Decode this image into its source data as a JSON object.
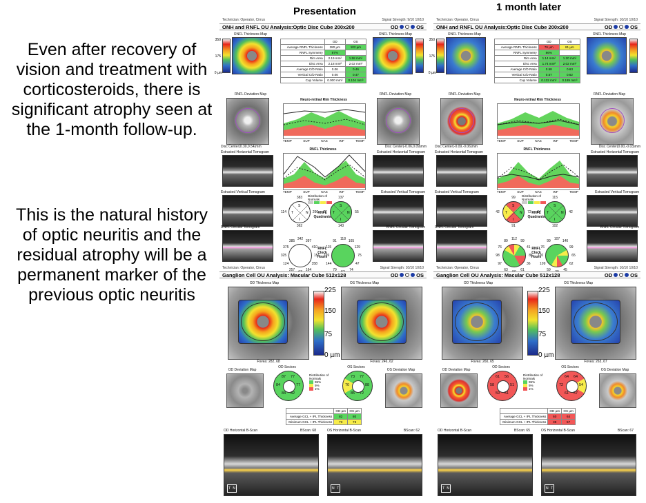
{
  "slide": {
    "caption_1": "Even after recovery of vision and treatment with corticosteroids, there is significant atrophy seen at the 1-month follow-up.",
    "caption_2": "This is the natural history of optic neuritis and the residual atrophy will be a permanent marker of the previous optic neuritis",
    "col_left_title": "Presentation",
    "col_right_title": "1 month later"
  },
  "reports": [
    {
      "technician": "Technician: Operator, Cirrus",
      "signal": "Signal Strength: 9/10   10/10",
      "onh_title": "ONH and RNFL OU Analysis:Optic Disc Cube 200x200",
      "od": "OD",
      "os": "OS",
      "rnfl_map": "RNFL Thickness Map",
      "scale_top": "350",
      "scale_mid": "175",
      "scale_bot": "0 µm",
      "table": {
        "head": [
          "",
          "OD",
          "OS"
        ],
        "rows": [
          [
            "Average RNFL Thickness",
            "280 µm",
            "102 µm"
          ],
          [
            "RNFL Symmetry",
            "87%",
            ""
          ],
          [
            "Rim Area",
            "2.19 mm²",
            "1.58 mm²"
          ],
          [
            "Disc Area",
            "2.18 mm²",
            "2.02 mm²"
          ],
          [
            "Average C/D Ratio",
            "0.06",
            "0.46"
          ],
          [
            "Vertical C/D Ratio",
            "0.06",
            "0.47"
          ],
          [
            "Cup Volume",
            "0.000 mm³",
            "0.104 mm³"
          ]
        ],
        "colors": [
          [
            "",
            "w",
            "g"
          ],
          [
            "",
            "g",
            ""
          ],
          [
            "",
            "w",
            "g"
          ],
          [
            "",
            "w",
            "w"
          ],
          [
            "",
            "w",
            "g"
          ],
          [
            "",
            "w",
            "g"
          ],
          [
            "",
            "w",
            "g"
          ]
        ]
      },
      "rim_title": "Neuro-retinal Rim Thickness",
      "rnfl_title": "RNFL Thickness",
      "deviation": "RNFL Deviation Map",
      "disc_center_od": "Disc Center(0.30,0.54)mm",
      "disc_center_os": "Disc Center(-0.06,0.09)mm",
      "horiz_tomo": "Extracted Horizontal Tomogram",
      "vert_tomo": "Extracted Vertical Tomogram",
      "circ_tomo": "RNFL Circular Tomogram",
      "axis_labels": [
        "TEMP",
        "SUP",
        "NAS",
        "INF",
        "TEMP"
      ],
      "quadrants_label": "RNFL Quadrants",
      "clock_label": "RNFL Clock Hours",
      "quad_od": [
        "383",
        "114",
        "260",
        "362"
      ],
      "quad_os": [
        "137",
        "70",
        "55",
        "143"
      ],
      "clock_od": [
        "342",
        "397",
        "410",
        "151",
        "358",
        "164",
        "67",
        "257",
        "124",
        "325",
        "375",
        "385"
      ],
      "clock_os": [
        "118",
        "165",
        "129",
        "75",
        "47",
        "74",
        "52",
        "79",
        "144",
        "169",
        "115",
        "91"
      ],
      "gcl_tech": "Technician: Operator, Cirrus",
      "gcl_signal": "Signal Strength: 10/10   10/10",
      "gcl_title": "Ganglion Cell OU Analysis: Macular Cube 512x128",
      "od_thick": "OD Thickness Map",
      "os_thick": "OS Thickness Map",
      "big_scale": [
        "225",
        "150",
        "75",
        "0 µm"
      ],
      "fovea_od": "Fovea: 282, 68",
      "fovea_os": "Fovea: 246, 62",
      "od_dev": "OD Deviation Map",
      "od_sec": "OD Sectors",
      "os_sec": "OS Sectors",
      "os_dev": "OS Deviation Map",
      "sectors_od": [
        "77",
        "77",
        "82",
        "84",
        "84",
        "87"
      ],
      "sectors_os": [
        "77",
        "88",
        "72",
        "85",
        "70",
        "73"
      ],
      "dist_labels": [
        "Distribution of Normals",
        "95%",
        "5%",
        "1%"
      ],
      "gcl_table": {
        "head": [
          "",
          "OD µm",
          "OS µm"
        ],
        "rows": [
          [
            "Average GCL + IPL Thickness",
            "82",
            "80"
          ],
          [
            "Minimum GCL + IPL Thickness",
            "73",
            "73"
          ]
        ],
        "colors": [
          [
            "",
            "g",
            "g"
          ],
          [
            "",
            "y",
            "y"
          ]
        ]
      },
      "od_bscan": "OD Horizontal B-Scan",
      "os_bscan": "OS Horizontal B-Scan",
      "bscan_od_num": "BScan: 68",
      "bscan_os_num": "BScan: 62"
    },
    {
      "technician": "Technician: Operator, Cirrus",
      "signal": "Signal Strength: 10/10   10/10",
      "onh_title": "ONH and RNFL OU Analysis:Optic Disc Cube 200x200",
      "od": "OD",
      "os": "OS",
      "rnfl_map": "RNFL Thickness Map",
      "scale_top": "350",
      "scale_mid": "175",
      "scale_bot": "0 µm",
      "table": {
        "head": [
          "",
          "OD",
          "OS"
        ],
        "rows": [
          [
            "Average RNFL Thickness",
            "76 µm",
            "81 µm"
          ],
          [
            "RNFL Symmetry",
            "86%",
            ""
          ],
          [
            "Rim Area",
            "1.14 mm²",
            "1.20 mm²"
          ],
          [
            "Disc Area",
            "1.74 mm²",
            "2.02 mm²"
          ],
          [
            "Average C/D Ratio",
            "0.58",
            "0.63"
          ],
          [
            "Vertical C/D Ratio",
            "0.57",
            "0.62"
          ],
          [
            "Cup Volume",
            "0.132 mm³",
            "0.189 mm³"
          ]
        ],
        "colors": [
          [
            "",
            "r",
            "y"
          ],
          [
            "",
            "g",
            ""
          ],
          [
            "",
            "g",
            "g"
          ],
          [
            "",
            "g",
            "g"
          ],
          [
            "",
            "g",
            "g"
          ],
          [
            "",
            "g",
            "g"
          ],
          [
            "",
            "g",
            "g"
          ]
        ]
      },
      "rim_title": "Neuro-retinal Rim Thickness",
      "rnfl_title": "RNFL Thickness",
      "deviation": "RNFL Deviation Map",
      "disc_center_od": "Disc Center(-0.09,-0.06)mm",
      "disc_center_os": "Disc Center(0.00,-0.03)mm",
      "horiz_tomo": "Extracted Horizontal Tomogram",
      "vert_tomo": "Extracted Vertical Tomogram",
      "circ_tomo": "RNFL Circular Tomogram",
      "axis_labels": [
        "TEMP",
        "SUP",
        "NAS",
        "INF",
        "TEMP"
      ],
      "quadrants_label": "RNFL Quadrants",
      "clock_label": "RNFL Clock Hours",
      "quad_od": [
        "99",
        "42",
        "72",
        "91"
      ],
      "quad_os": [
        "115",
        "64",
        "42",
        "102"
      ],
      "clock_od": [
        "112",
        "99",
        "41",
        "85",
        "36",
        "61",
        "50",
        "63",
        "97",
        "98",
        "76",
        "89"
      ],
      "clock_os": [
        "107",
        "140",
        "99",
        "65",
        "62",
        "45",
        "39",
        "59",
        "109",
        "120",
        "76",
        "99"
      ],
      "gcl_tech": "Technician: Operator, Cirrus",
      "gcl_signal": "Signal Strength: 10/10   10/10",
      "gcl_title": "Ganglion Cell OU Analysis: Macular Cube 512x128",
      "od_thick": "OD Thickness Map",
      "os_thick": "OS Thickness Map",
      "big_scale": [
        "225",
        "150",
        "75",
        "0 µm"
      ],
      "fovea_od": "Fovea: 260, 65",
      "fovea_os": "Fovea: 263, 67",
      "od_dev": "OD Deviation Map",
      "od_sec": "OD Sectors",
      "os_sec": "OS Sectors",
      "os_dev": "OS Deviation Map",
      "sectors_od": [
        "56",
        "51",
        "51",
        "59",
        "58",
        "61"
      ],
      "sectors_os": [
        "64",
        "54",
        "57",
        "61",
        "72",
        "64"
      ],
      "dist_labels": [
        "Distribution of Normals",
        "95%",
        "5%",
        "1%"
      ],
      "gcl_table": {
        "head": [
          "",
          "OD µm",
          "OS µm"
        ],
        "rows": [
          [
            "Average GCL + IPL Thickness",
            "60",
            "64"
          ],
          [
            "Minimum GCL + IPL Thickness",
            "38",
            "57"
          ]
        ],
        "colors": [
          [
            "",
            "r",
            "r"
          ],
          [
            "",
            "r",
            "r"
          ]
        ]
      },
      "od_bscan": "OD Horizontal B-Scan",
      "os_bscan": "OS Horizontal B-Scan",
      "bscan_od_num": "BScan: 65",
      "bscan_os_num": "BScan: 67"
    }
  ]
}
